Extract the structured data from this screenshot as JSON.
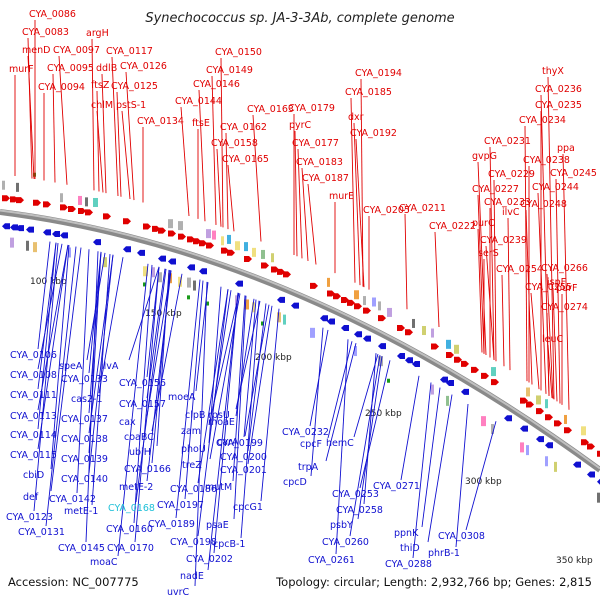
{
  "title": "Synechococcus sp. JA-3-3Ab, complete genome",
  "footer": {
    "accession": "Accession: NC_007775",
    "summary": "Topology: circular; Length: 2,932,766 bp; Genes: 2,815"
  },
  "colors": {
    "forward": "#e00000",
    "reverse": "#1010d0",
    "highlight": "#20c0d8",
    "backbone": "#888888"
  },
  "ticks": [
    "100 kbp",
    "150 kbp",
    "200 kbp",
    "250 kbp",
    "300 kbp",
    "350 kbp"
  ],
  "forward_labels": [
    "CYA_0086",
    "argH",
    "CYA_0083",
    "menD",
    "CYA_0097",
    "murF",
    "CYA_0095",
    "ddlB",
    "CYA_0117",
    "CYA_0126",
    "CYA_0094",
    "ftsZ",
    "CYA_0125",
    "chlM",
    "pstS-1",
    "CYA_0134",
    "CYA_0150",
    "CYA_0149",
    "CYA_0146",
    "CYA_0144",
    "ftsE",
    "CYA_0162",
    "CYA_0158",
    "CYA_0165",
    "CYA_0163",
    "CYA_0179",
    "pyrC",
    "CYA_0177",
    "CYA_0183",
    "CYA_0187",
    "murE",
    "CYA_0194",
    "CYA_0185",
    "dxr",
    "CYA_0192",
    "CYA_0205",
    "CYA_0211",
    "CYA_0222",
    "thyX",
    "CYA_0236",
    "CYA_0235",
    "CYA_0234",
    "CYA_0231",
    "ppa",
    "gvpG",
    "CYA_0238",
    "CYA_0229",
    "CYA_0245",
    "CYA_0227",
    "CYA_0244",
    "CYA_0233",
    "ilvC",
    "purC",
    "CYA_0248",
    "CYA_0239",
    "serS",
    "CYA_0254",
    "ispF",
    "CYA_0266",
    "CYA_0255",
    "purF",
    "CYA_0274",
    "leuC"
  ],
  "reverse_labels": [
    "CYA_0106",
    "speA",
    "CYA_0108",
    "ilvA",
    "CYA_0133",
    "CYA_0111",
    "cas2-1",
    "CYA_0113",
    "CYA_0137",
    "CYA_0114",
    "CYA_0138",
    "CYA_0115",
    "CYA_0139",
    "cbiD",
    "CYA_0140",
    "def",
    "CYA_0142",
    "metE-1",
    "CYA_0123",
    "CYA_0131",
    "CYA_0145",
    "CYA_0160",
    "CYA_0170",
    "moaC",
    "CYA_0156",
    "CYA_0157",
    "cax",
    "coaBC",
    "ubiH",
    "CYA_0166",
    "metE-2",
    "CYA_0168",
    "moeA",
    "clpB",
    "rpsU",
    "zam",
    "phoU",
    "moaE",
    "carA",
    "treZ",
    "CYA_0199",
    "CYA_0200",
    "CYA_0201",
    "CYA_0186",
    "mutM",
    "CYA_0197",
    "CYA_0189",
    "CYA_0198",
    "psaE",
    "cpcB-1",
    "CYA_0202",
    "nadE",
    "uvrC",
    "CYA_0232",
    "cpcF",
    "trpA",
    "cpcD",
    "cpcG1",
    "hemC",
    "CYA_0253",
    "CYA_0258",
    "CYA_0271",
    "psbY",
    "CYA_0260",
    "CYA_0261",
    "ppnK",
    "thiD",
    "CYA_0308",
    "phrB-1",
    "CYA_0288"
  ]
}
